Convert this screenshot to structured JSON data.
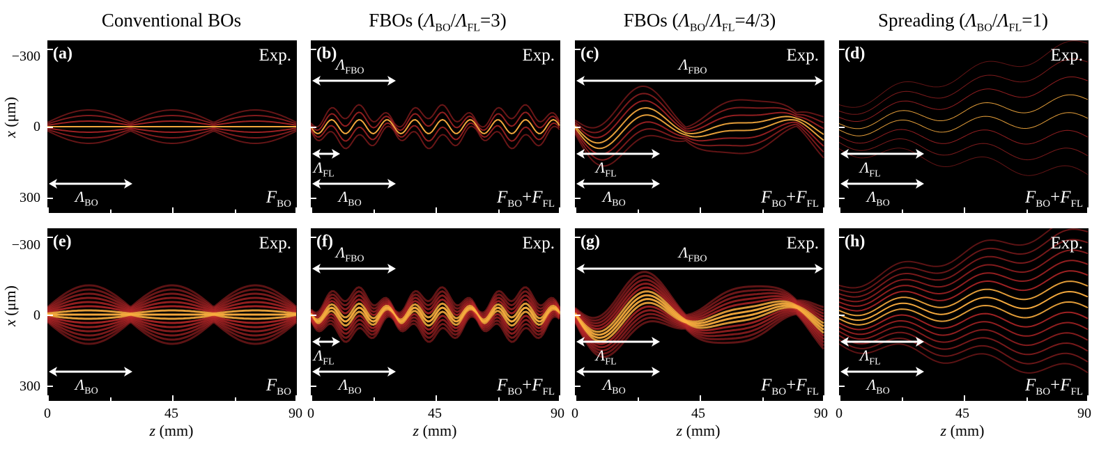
{
  "column_titles": [
    {
      "prefix": "Conventional BOs",
      "ratio": ""
    },
    {
      "prefix": "FBOs (",
      "ratio": "=3)"
    },
    {
      "prefix": "FBOs (",
      "ratio": "=4/3)"
    },
    {
      "prefix": "Spreading (",
      "ratio": "=1)"
    }
  ],
  "symbols": {
    "lambda": "Λ",
    "bo": "BO",
    "fl": "FL",
    "fbo": "FBO",
    "slash": "/",
    "force": "F",
    "plus": "+"
  },
  "axes": {
    "ylabel_var": "x",
    "ylabel_unit": " (μm)",
    "xlabel_var": "z",
    "xlabel_unit": " (mm)",
    "yticks": [
      "−300",
      "0",
      "300"
    ],
    "xticks": [
      "0",
      "45",
      "90"
    ]
  },
  "panels": [
    {
      "id": "(a)",
      "tag": "Exp.",
      "has_fbo": false,
      "has_fl": false,
      "force_fl": false
    },
    {
      "id": "(b)",
      "tag": "Exp.",
      "has_fbo": true,
      "has_fl": true,
      "force_fl": true
    },
    {
      "id": "(c)",
      "tag": "Exp.",
      "has_fbo": true,
      "has_fl": true,
      "force_fl": true
    },
    {
      "id": "(d)",
      "tag": "Exp.",
      "has_fbo": false,
      "has_fl": true,
      "force_fl": true
    },
    {
      "id": "(e)",
      "tag": "Exp.",
      "has_fbo": false,
      "has_fl": false,
      "force_fl": false
    },
    {
      "id": "(f)",
      "tag": "Exp.",
      "has_fbo": true,
      "has_fl": true,
      "force_fl": true
    },
    {
      "id": "(g)",
      "tag": "Exp.",
      "has_fbo": true,
      "has_fl": true,
      "force_fl": true
    },
    {
      "id": "(h)",
      "tag": "Exp.",
      "has_fbo": false,
      "has_fl": true,
      "force_fl": true
    }
  ],
  "colors": {
    "panel_bg": "#000000",
    "beam_outer": "#c0282a",
    "beam_inner": "#ffb040",
    "annotation": "#ffffff"
  }
}
